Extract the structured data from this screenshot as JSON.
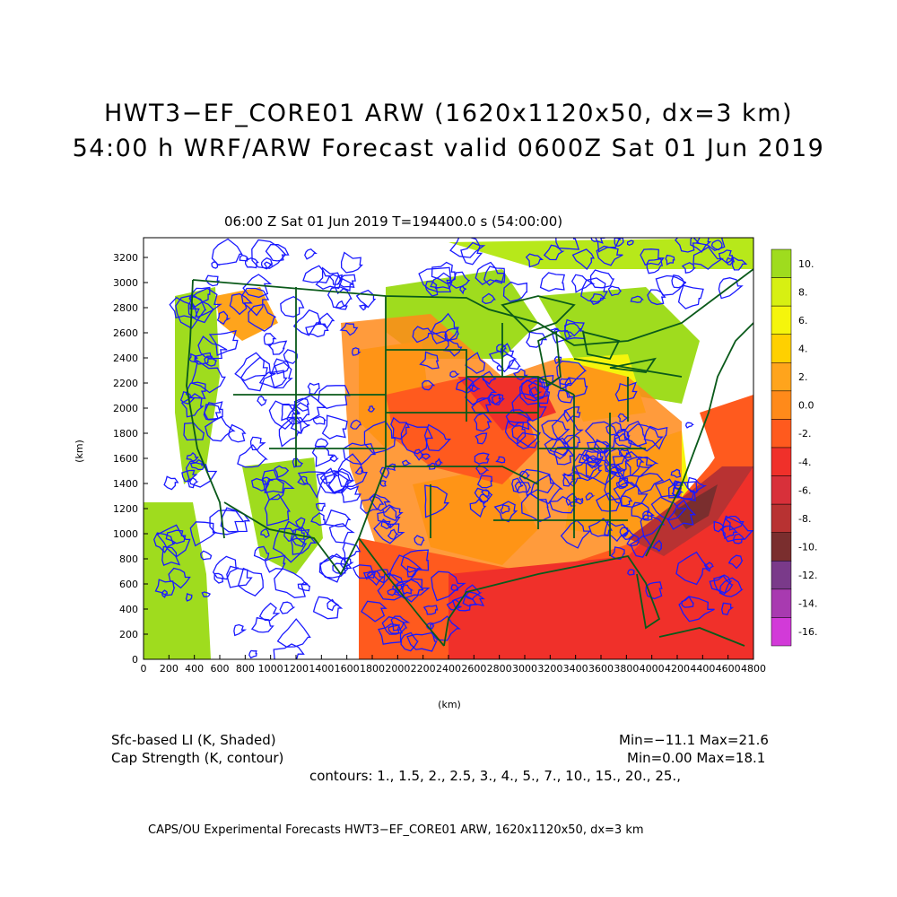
{
  "header": {
    "title_line1": "HWT3−EF_CORE01 ARW (1620x1120x50, dx=3 km)",
    "title_line2": "54:00 h WRF/ARW Forecast valid 0600Z Sat 01 Jun 2019",
    "subtitle": "06:00 Z Sat 01 Jun 2019    T=194400.0 s (54:00:00)"
  },
  "axes": {
    "x_label": "(km)",
    "y_label": "(km)",
    "x_ticks": [
      "0",
      "200",
      "400",
      "600",
      "800",
      "1000",
      "1200",
      "1400",
      "1600",
      "1800",
      "2000",
      "2200",
      "2400",
      "2600",
      "2800",
      "3000",
      "3200",
      "3400",
      "3600",
      "3800",
      "4000",
      "4200",
      "4400",
      "4600",
      "4800"
    ],
    "y_ticks": [
      "0",
      "200",
      "400",
      "600",
      "800",
      "1000",
      "1200",
      "1400",
      "1600",
      "1800",
      "2000",
      "2200",
      "2400",
      "2600",
      "2800",
      "3000",
      "3200"
    ]
  },
  "colorbar": {
    "labels": [
      "10.",
      "8.",
      "6.",
      "4.",
      "2.",
      "0.0",
      "-2.",
      "-4.",
      "-6.",
      "-8.",
      "-10.",
      "-12.",
      "-14.",
      "-16."
    ],
    "colors": [
      "#9fdc1e",
      "#d7f012",
      "#f5f50c",
      "#ffd000",
      "#ffa41c",
      "#ff8a1a",
      "#ff5a1e",
      "#f0302a",
      "#d8303a",
      "#b83232",
      "#7a2e2e",
      "#7a3a8a",
      "#a83ab0",
      "#d23ad8"
    ]
  },
  "map_colors": {
    "contour": "#1a1aff",
    "states": "#0a5a1a",
    "unshaded": "#ffffff"
  },
  "legend": {
    "shaded_label": "Sfc-based LI (K, Shaded)",
    "contour_label": "Cap Strength (K, contour)",
    "shaded_range": "Min=−11.1 Max=21.6",
    "contour_range": "Min=0.00 Max=18.1",
    "contour_levels": "contours: 1., 1.5, 2., 2.5, 3., 4., 5., 7., 10., 15., 20., 25.,"
  },
  "footer": {
    "text": "CAPS/OU Experimental Forecasts  HWT3−EF_CORE01 ARW, 1620x1120x50, dx=3 km"
  }
}
